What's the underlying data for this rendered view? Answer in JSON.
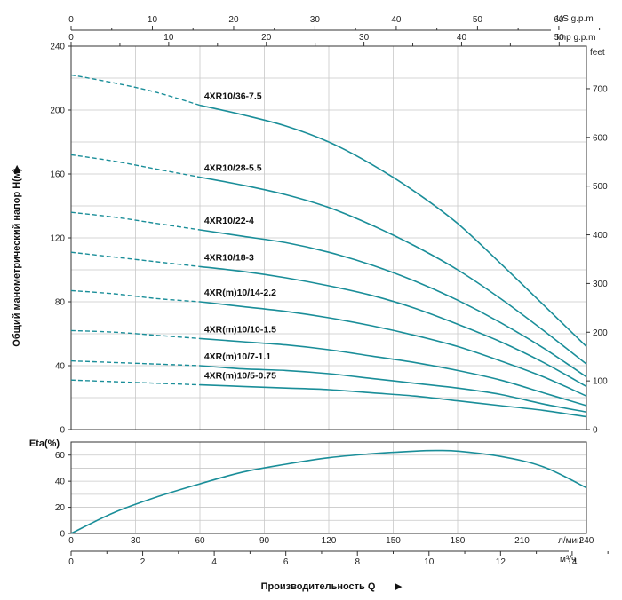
{
  "chart_data": {
    "type": "line",
    "head_chart": {
      "ylabel": "Общий манометрический напор H(м)",
      "ylim": [
        0,
        240
      ],
      "yticks": [
        0,
        40,
        80,
        120,
        160,
        200,
        240
      ],
      "ylabel_right": "feet",
      "yticks_right": [
        0,
        100,
        200,
        300,
        400,
        500,
        600,
        700
      ],
      "top_axis_us": {
        "label": "US g.p.m",
        "ticks": [
          0,
          10,
          20,
          30,
          40,
          50,
          60
        ]
      },
      "top_axis_imp": {
        "label": "Imp g.p.m",
        "ticks": [
          0,
          10,
          20,
          30,
          40,
          50
        ]
      },
      "series": [
        {
          "name": "4XR10/36-7.5",
          "x": [
            0,
            20,
            40,
            60,
            80,
            100,
            120,
            140,
            160,
            180,
            200,
            220,
            240
          ],
          "y": [
            222,
            217,
            211,
            203,
            197,
            190,
            180,
            166,
            149,
            129,
            104,
            78,
            52
          ]
        },
        {
          "name": "4XR10/28-5.5",
          "x": [
            0,
            20,
            40,
            60,
            80,
            100,
            120,
            140,
            160,
            180,
            200,
            220,
            240
          ],
          "y": [
            172,
            168,
            163,
            158,
            153,
            147,
            139,
            128,
            115,
            100,
            82,
            62,
            41
          ]
        },
        {
          "name": "4XR10/22-4",
          "x": [
            0,
            20,
            40,
            60,
            80,
            100,
            120,
            140,
            160,
            180,
            200,
            220,
            240
          ],
          "y": [
            136,
            133,
            129,
            125,
            121,
            117,
            111,
            103,
            93,
            81,
            67,
            51,
            33
          ]
        },
        {
          "name": "4XR10/18-3",
          "x": [
            0,
            20,
            40,
            60,
            80,
            100,
            120,
            140,
            160,
            180,
            200,
            220,
            240
          ],
          "y": [
            111,
            108,
            105,
            102,
            99,
            95,
            90,
            84,
            76,
            66,
            55,
            42,
            27
          ]
        },
        {
          "name": "4XR(m)10/14-2.2",
          "x": [
            0,
            20,
            40,
            60,
            80,
            100,
            120,
            140,
            160,
            180,
            200,
            220,
            240
          ],
          "y": [
            87,
            85,
            82,
            80,
            77,
            74,
            70,
            65,
            59,
            52,
            43,
            33,
            21
          ]
        },
        {
          "name": "4XR(m)10/10-1.5",
          "x": [
            0,
            20,
            40,
            60,
            80,
            100,
            120,
            140,
            160,
            180,
            200,
            220,
            240
          ],
          "y": [
            62,
            61,
            59,
            57,
            55,
            53,
            50,
            46,
            42,
            37,
            31,
            23,
            15
          ]
        },
        {
          "name": "4XR(m)10/7-1.1",
          "x": [
            0,
            20,
            40,
            60,
            80,
            100,
            120,
            140,
            160,
            180,
            200,
            220,
            240
          ],
          "y": [
            43,
            42,
            41,
            40,
            38,
            37,
            35,
            32,
            29,
            26,
            22,
            16,
            11
          ]
        },
        {
          "name": "4XR(m)10/5-0.75",
          "x": [
            0,
            20,
            40,
            60,
            80,
            100,
            120,
            140,
            160,
            180,
            200,
            220,
            240
          ],
          "y": [
            31,
            30,
            29,
            28,
            27,
            26,
            25,
            23,
            21,
            18,
            15,
            12,
            8
          ]
        }
      ]
    },
    "eta_chart": {
      "ylabel": "Eta(%)",
      "ylim": [
        0,
        70
      ],
      "yticks": [
        0,
        20,
        40,
        60
      ],
      "x": [
        0,
        20,
        40,
        60,
        80,
        100,
        120,
        140,
        160,
        170,
        180,
        200,
        220,
        240
      ],
      "y": [
        0,
        16,
        28,
        38,
        47,
        53,
        58,
        61,
        63,
        63.5,
        63,
        59,
        51,
        35
      ]
    },
    "x_axis_lmin": {
      "label": "л/мин",
      "ticks": [
        0,
        30,
        60,
        90,
        120,
        150,
        180,
        210,
        240
      ]
    },
    "x_axis_m3h": {
      "label": "м³/ч",
      "ticks": [
        0,
        2,
        4,
        6,
        8,
        10,
        12,
        14
      ]
    },
    "xlabel": "Производительность Q",
    "xlim_lmin": [
      0,
      240
    ]
  },
  "colors": {
    "curve": "#1a8e99",
    "grid": "#c8c8c8",
    "axis": "#333333"
  }
}
